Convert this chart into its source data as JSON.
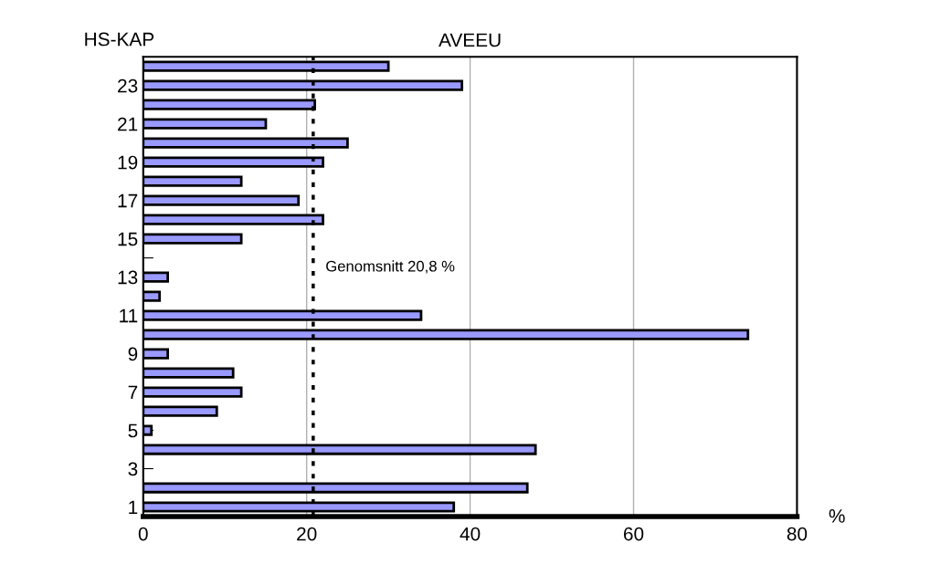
{
  "chart_data": {
    "type": "bar",
    "orientation": "horizontal",
    "title": "AVEEU",
    "ylabel": "HS-KAP",
    "xlabel": "%",
    "categories": [
      null,
      "23",
      null,
      "21",
      null,
      "19",
      null,
      "17",
      null,
      "15",
      null,
      "13",
      null,
      "11",
      null,
      "9",
      null,
      "7",
      null,
      "5",
      null,
      "3",
      null,
      "1"
    ],
    "values": [
      30,
      39,
      21,
      15,
      25,
      22,
      12,
      19,
      22,
      12,
      0,
      3,
      2,
      34,
      74,
      3,
      11,
      12,
      9,
      1,
      48,
      0,
      47,
      38
    ],
    "color": "#9999ff",
    "xlim": [
      0,
      80
    ],
    "xticks": [
      0,
      20,
      40,
      60,
      80
    ],
    "grid": "x",
    "ref_lines": [
      {
        "axis": "x",
        "value": 20.8,
        "label": "Genomsnitt 20,8 %",
        "color": "#000000",
        "line_style": "dotted"
      }
    ]
  }
}
